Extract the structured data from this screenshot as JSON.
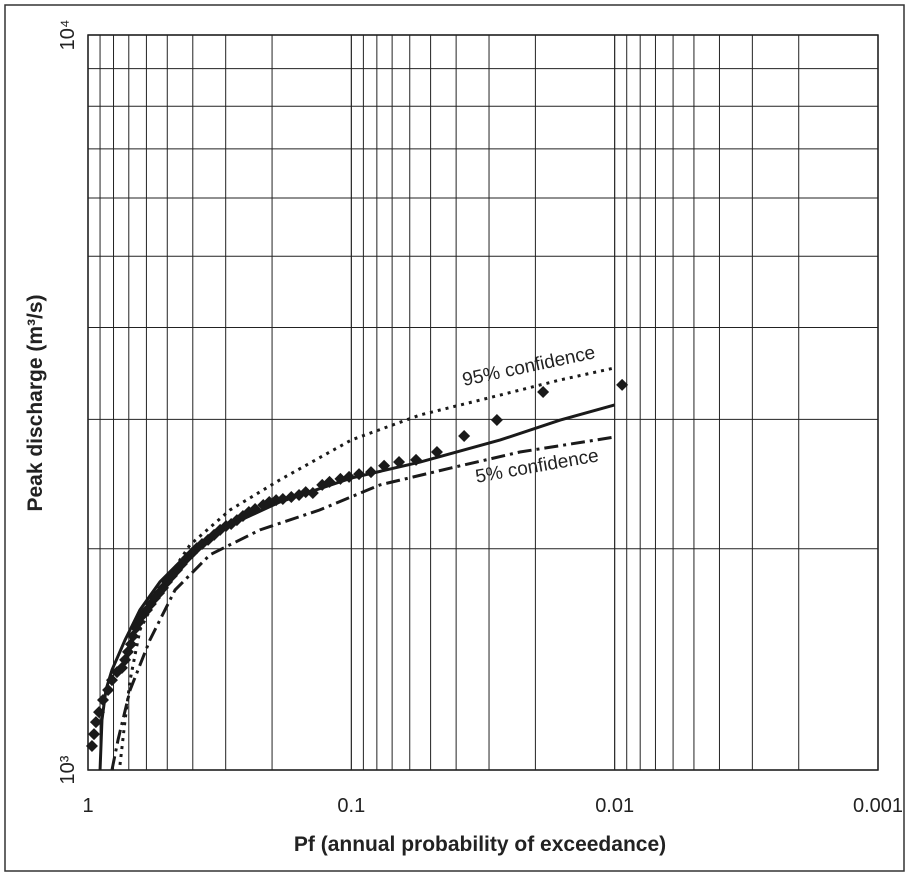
{
  "chart_data": {
    "type": "scatter",
    "x_label": "Pf (annual probability of exceedance)",
    "y_label": "Peak discharge (m³/s)",
    "xscale": "log",
    "yscale": "log",
    "grid": true,
    "xlim": [
      1,
      0.001
    ],
    "xticks": [
      1,
      0.1,
      0.01,
      0.001
    ],
    "ylim": [
      1000,
      10000
    ],
    "yticks": [
      {
        "value": 1000,
        "label": "10³"
      },
      {
        "value": 10000,
        "label": "10⁴"
      }
    ],
    "series": [
      {
        "type": "scatter",
        "color": "#1a1a1a",
        "x": [
          0.00937,
          0.0187,
          0.028,
          0.0373,
          0.0473,
          0.0568,
          0.0659,
          0.0751,
          0.0842,
          0.0935,
          0.102,
          0.11,
          0.121,
          0.129,
          0.14,
          0.149,
          0.158,
          0.169,
          0.182,
          0.193,
          0.205,
          0.216,
          0.232,
          0.245,
          0.258,
          0.272,
          0.286,
          0.299,
          0.315,
          0.332,
          0.35,
          0.369,
          0.386,
          0.403,
          0.421,
          0.44,
          0.459,
          0.48,
          0.501,
          0.519,
          0.537,
          0.557,
          0.577,
          0.597,
          0.624,
          0.64,
          0.657,
          0.675,
          0.687,
          0.705,
          0.723,
          0.743,
          0.776,
          0.811,
          0.839,
          0.877,
          0.908,
          0.933,
          0.949,
          0.966
        ],
        "values": [
          3342,
          3268,
          2993,
          2847,
          2708,
          2642,
          2624,
          2594,
          2543,
          2527,
          2505,
          2489,
          2466,
          2443,
          2382,
          2388,
          2367,
          2352,
          2337,
          2329,
          2315,
          2294,
          2265,
          2244,
          2216,
          2188,
          2161,
          2148,
          2122,
          2089,
          2056,
          2030,
          2004,
          1973,
          1943,
          1907,
          1872,
          1837,
          1803,
          1769,
          1741,
          1714,
          1682,
          1651,
          1621,
          1589,
          1561,
          1521,
          1483,
          1448,
          1412,
          1377,
          1359,
          1325,
          1285,
          1245,
          1199,
          1162,
          1119,
          1078
        ]
      },
      {
        "type": "line",
        "style": "solid",
        "color": "#1a1a1a",
        "x": [
          0.9,
          0.885,
          0.855,
          0.811,
          0.723,
          0.635,
          0.533,
          0.41,
          0.289,
          0.187,
          0.1,
          0.0548,
          0.0272,
          0.0161,
          0.01
        ],
        "values": [
          1000,
          1170,
          1285,
          1368,
          1503,
          1651,
          1803,
          1981,
          2154,
          2315,
          2496,
          2624,
          2812,
          2993,
          3138
        ]
      },
      {
        "type": "line",
        "style": "dotted",
        "color": "#1a1a1a",
        "x": [
          0.756,
          0.723,
          0.692,
          0.635,
          0.533,
          0.41,
          0.289,
          0.187,
          0.1,
          0.0548,
          0.0272,
          0.0161,
          0.01
        ],
        "values": [
          1016,
          1170,
          1325,
          1551,
          1758,
          2024,
          2258,
          2481,
          2812,
          3041,
          3237,
          3394,
          3524
        ]
      },
      {
        "type": "line",
        "style": "dashdot",
        "color": "#1a1a1a",
        "x": [
          0.811,
          0.769,
          0.692,
          0.582,
          0.467,
          0.344,
          0.222,
          0.132,
          0.0778,
          0.0418,
          0.0229,
          0.01
        ],
        "values": [
          1000,
          1099,
          1285,
          1503,
          1758,
          1963,
          2122,
          2258,
          2443,
          2576,
          2708,
          2838
        ]
      }
    ],
    "annotations": [
      "95% confidence",
      "5% confidence"
    ]
  }
}
